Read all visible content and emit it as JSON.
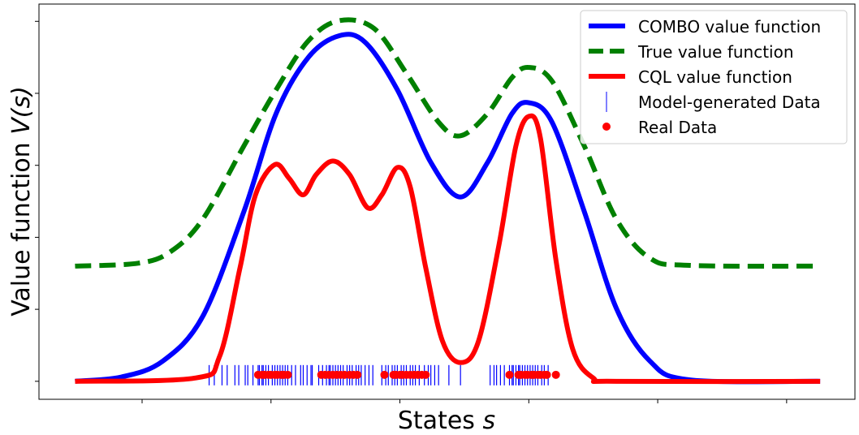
{
  "chart_data": {
    "type": "line",
    "title": "",
    "xlabel": "States",
    "xlabel_var": "s",
    "ylabel": "Value function",
    "ylabel_var": "V(s)",
    "xlim": [
      -0.8,
      5.53
    ],
    "ylim": [
      -0.25,
      5.24
    ],
    "xticks": [
      0,
      1,
      2,
      3,
      4,
      5
    ],
    "yticks": [
      0,
      1,
      2,
      3,
      4,
      5
    ],
    "tick_labels_shown": false,
    "grid": false,
    "legend_position": "top-right",
    "colors": {
      "combo": "#0000ff",
      "true": "#008000",
      "cql": "#ff0000",
      "model": "#0000ff",
      "real": "#ff0000"
    },
    "series": [
      {
        "name": "COMBO value function",
        "style": "solid",
        "color": "#0000ff",
        "x": [
          -0.52,
          -0.16,
          0.16,
          0.47,
          0.79,
          1.04,
          1.29,
          1.53,
          1.73,
          1.98,
          2.24,
          2.47,
          2.68,
          2.87,
          3.0,
          3.18,
          3.43,
          3.68,
          3.94,
          4.25,
          5.26
        ],
        "y": [
          0,
          0.06,
          0.28,
          0.9,
          2.36,
          3.72,
          4.5,
          4.8,
          4.71,
          4.05,
          3.04,
          2.56,
          3.04,
          3.72,
          3.87,
          3.6,
          2.36,
          1.01,
          0.28,
          0.02,
          0
        ]
      },
      {
        "name": "True value function",
        "style": "dashed",
        "color": "#008000",
        "x": [
          -0.52,
          -0.03,
          0.22,
          0.47,
          0.79,
          1.04,
          1.29,
          1.53,
          1.8,
          2.05,
          2.3,
          2.47,
          2.68,
          2.87,
          3.0,
          3.18,
          3.43,
          3.68,
          3.94,
          4.25,
          5.26
        ],
        "y": [
          1.6,
          1.64,
          1.8,
          2.25,
          3.27,
          4.05,
          4.73,
          5.01,
          4.9,
          4.28,
          3.6,
          3.41,
          3.72,
          4.22,
          4.36,
          4.17,
          3.27,
          2.25,
          1.71,
          1.61,
          1.6
        ]
      },
      {
        "name": "CQL value function",
        "style": "solid",
        "color": "#ff0000",
        "x": [
          -0.52,
          0.41,
          0.6,
          0.76,
          0.88,
          1.03,
          1.14,
          1.25,
          1.35,
          1.48,
          1.61,
          1.75,
          1.86,
          1.98,
          2.08,
          2.2,
          2.33,
          2.47,
          2.61,
          2.77,
          2.9,
          3.0,
          3.09,
          3.21,
          3.34,
          3.5,
          3.68,
          5.26
        ],
        "y": [
          0,
          0.045,
          0.34,
          1.58,
          2.59,
          3.01,
          2.82,
          2.59,
          2.87,
          3.06,
          2.87,
          2.41,
          2.59,
          2.97,
          2.7,
          1.58,
          0.56,
          0.26,
          0.56,
          1.91,
          3.27,
          3.68,
          3.38,
          1.69,
          0.45,
          0.045,
          0,
          0
        ]
      }
    ],
    "model_generated_data": {
      "name": "Model-generated Data",
      "marker": "vertical-line",
      "y": 0.0,
      "x": [
        0.52,
        0.56,
        0.62,
        0.66,
        0.72,
        0.75,
        0.8,
        0.82,
        0.86,
        0.9,
        0.91,
        0.93,
        0.94,
        0.96,
        0.98,
        1.01,
        1.03,
        1.05,
        1.07,
        1.09,
        1.11,
        1.13,
        1.16,
        1.19,
        1.23,
        1.25,
        1.28,
        1.31,
        1.32,
        1.37,
        1.4,
        1.43,
        1.45,
        1.46,
        1.48,
        1.5,
        1.52,
        1.54,
        1.56,
        1.59,
        1.61,
        1.63,
        1.66,
        1.68,
        1.7,
        1.73,
        1.76,
        1.79,
        1.86,
        1.89,
        1.91,
        1.94,
        1.96,
        1.98,
        2.01,
        2.03,
        2.05,
        2.08,
        2.1,
        2.12,
        2.15,
        2.19,
        2.22,
        2.24,
        2.27,
        2.3,
        2.38,
        2.47,
        2.7,
        2.73,
        2.75,
        2.78,
        2.81,
        2.85,
        2.87,
        2.88,
        2.9,
        2.92,
        2.93,
        2.95,
        2.97,
        2.99,
        3.01,
        3.03,
        3.05,
        3.07,
        3.1,
        3.12,
        3.15
      ]
    },
    "real_data": {
      "name": "Real Data",
      "marker": "dot",
      "y": 0.09,
      "x": [
        0.9,
        0.93,
        0.95,
        0.98,
        1.0,
        1.03,
        1.05,
        1.08,
        1.1,
        1.13,
        1.39,
        1.42,
        1.45,
        1.48,
        1.51,
        1.54,
        1.57,
        1.61,
        1.64,
        1.67,
        1.88,
        1.95,
        1.97,
        2.0,
        2.02,
        2.05,
        2.08,
        2.11,
        2.14,
        2.17,
        2.2,
        2.85,
        2.92,
        2.94,
        2.97,
        2.99,
        3.02,
        3.04,
        3.07,
        3.09,
        3.12,
        3.14,
        3.21
      ]
    }
  }
}
